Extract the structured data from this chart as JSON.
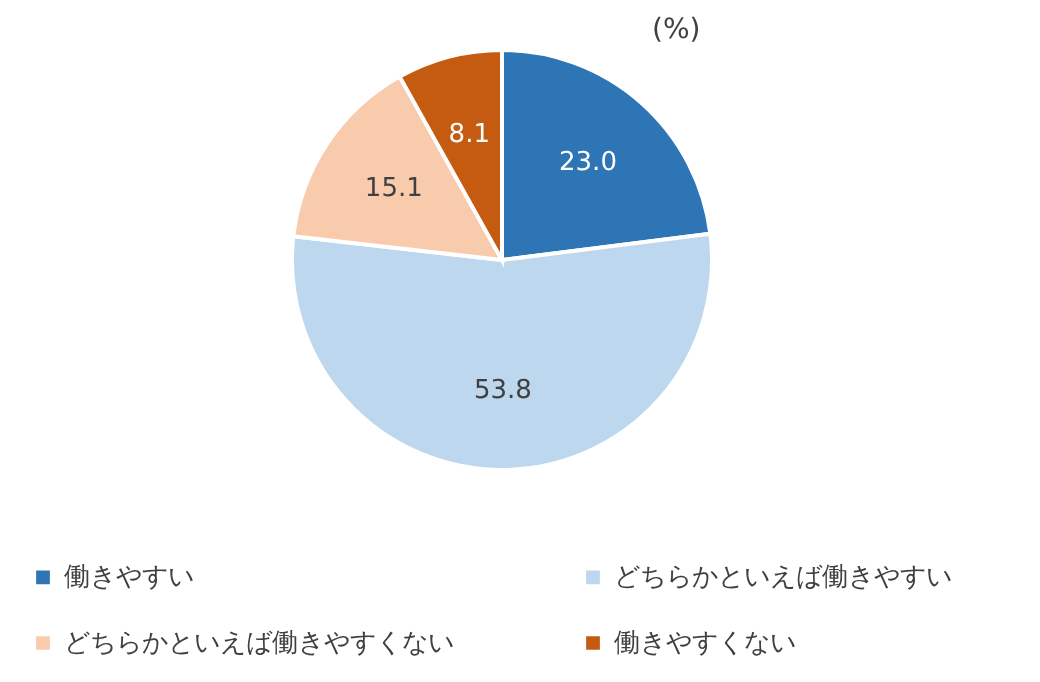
{
  "chart_data": {
    "type": "pie",
    "categories": [
      "働きやすい",
      "どちらかといえば働きやすい",
      "どちらかといえば働きやすくない",
      "働きやすくない"
    ],
    "values": [
      23.0,
      53.8,
      15.1,
      8.1
    ],
    "colors": [
      "#2e75b6",
      "#bdd7ee",
      "#f8cbad",
      "#c55a11"
    ],
    "value_labels": [
      "23.0",
      "53.8",
      "15.1",
      "8.1"
    ],
    "annotations": [
      "(%)"
    ],
    "legend": "bottom"
  }
}
